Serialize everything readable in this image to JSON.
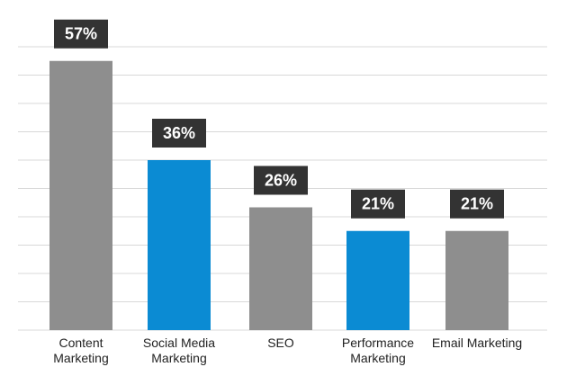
{
  "chart_data": {
    "type": "bar",
    "categories": [
      "Content Marketing",
      "Social Media Marketing",
      "SEO",
      "Performance Marketing",
      "Email Marketing"
    ],
    "values": [
      57,
      36,
      26,
      21,
      21
    ],
    "value_labels": [
      "57%",
      "36%",
      "26%",
      "21%",
      "21%"
    ],
    "colors": [
      "#8e8e8e",
      "#0b8bd3",
      "#8e8e8e",
      "#0b8bd3",
      "#8e8e8e"
    ],
    "ylim": [
      0,
      60
    ],
    "yticks": [
      0,
      6,
      12,
      18,
      24,
      30,
      36,
      42,
      48,
      54,
      60
    ],
    "grid": true
  }
}
